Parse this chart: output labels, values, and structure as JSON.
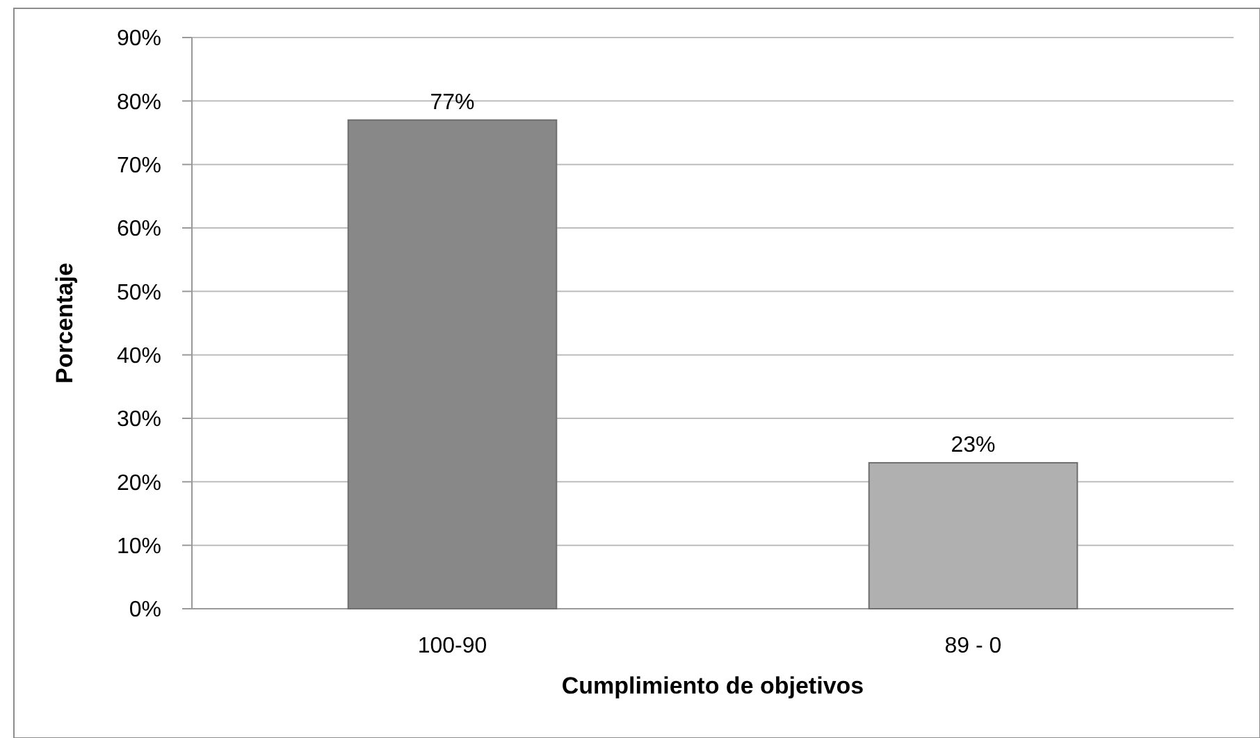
{
  "chart_data": {
    "type": "bar",
    "xlabel": "Cumplimiento  de objetivos",
    "ylabel": "Porcentaje",
    "categories": [
      "100-90",
      "89 - 0"
    ],
    "values": [
      77,
      23
    ],
    "colors": [
      "#888888",
      "#b0b0b0"
    ],
    "value_labels": [
      "77%",
      "23%"
    ],
    "ylim": [
      0,
      90
    ],
    "yticks": [
      {
        "value": 0,
        "label": "0%"
      },
      {
        "value": 10,
        "label": "10%"
      },
      {
        "value": 20,
        "label": "20%"
      },
      {
        "value": 30,
        "label": "30%"
      },
      {
        "value": 40,
        "label": "40%"
      },
      {
        "value": 50,
        "label": "50%"
      },
      {
        "value": 60,
        "label": "60%"
      },
      {
        "value": 70,
        "label": "70%"
      },
      {
        "value": 80,
        "label": "80%"
      },
      {
        "value": 90,
        "label": "90%"
      }
    ],
    "grid": "y"
  }
}
